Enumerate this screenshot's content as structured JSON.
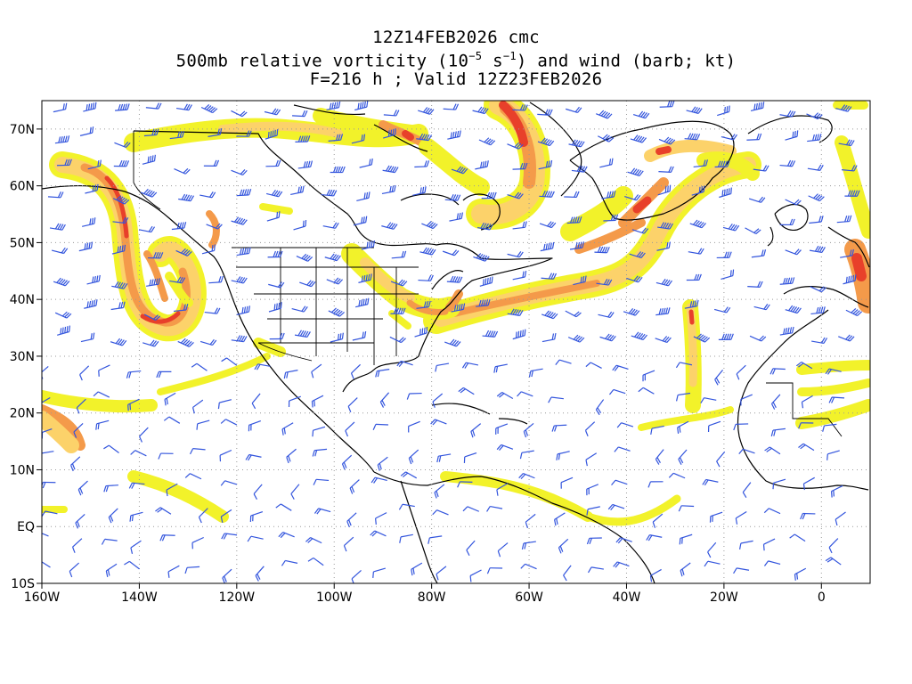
{
  "title": {
    "run": "12Z14FEB2026 cmc",
    "field_prefix": "500mb relative vorticity (10",
    "field_exp1": "−5",
    "field_mid": " s",
    "field_exp2": "−1",
    "field_suffix": ") and wind (barb; kt)",
    "forecast": "F=216 h ; Valid 12Z23FEB2026"
  },
  "map": {
    "lon_range": [
      -160,
      10
    ],
    "lat_range": [
      -10,
      75
    ],
    "lon_ticks": [
      {
        "value": -160,
        "label": "160W"
      },
      {
        "value": -140,
        "label": "140W"
      },
      {
        "value": -120,
        "label": "120W"
      },
      {
        "value": -100,
        "label": "100W"
      },
      {
        "value": -80,
        "label": "80W"
      },
      {
        "value": -60,
        "label": "60W"
      },
      {
        "value": -40,
        "label": "40W"
      },
      {
        "value": -20,
        "label": "20W"
      },
      {
        "value": 0,
        "label": "0"
      }
    ],
    "lat_ticks": [
      {
        "value": -10,
        "label": "10S"
      },
      {
        "value": 0,
        "label": "EQ"
      },
      {
        "value": 10,
        "label": "10N"
      },
      {
        "value": 20,
        "label": "20N"
      },
      {
        "value": 30,
        "label": "30N"
      },
      {
        "value": 40,
        "label": "40N"
      },
      {
        "value": 50,
        "label": "50N"
      },
      {
        "value": 60,
        "label": "60N"
      },
      {
        "value": 70,
        "label": "70N"
      }
    ],
    "colors": {
      "shade_low": "#f2f22a",
      "shade_mid": "#fcd26a",
      "shade_high": "#f49a4a",
      "shade_max": "#e8402a",
      "barb": "#3355dd",
      "coast": "#000000",
      "grid": "#999999"
    }
  }
}
